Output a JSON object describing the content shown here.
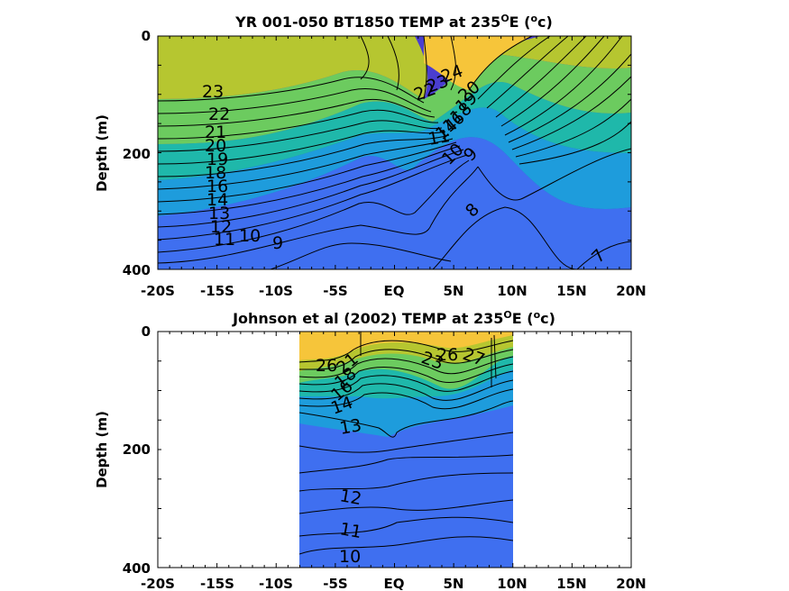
{
  "colors": {
    "warm": "#f6c53a",
    "yellow_green": "#b6c630",
    "green": "#6ccb5f",
    "teal": "#1fb8aa",
    "cyan": "#1e9cdc",
    "blue": "#3f6ff0",
    "deep_blue": "#4a3ed0",
    "contour": "#000000"
  },
  "chart_data": [
    {
      "type": "heatmap",
      "subtype": "filled-contour",
      "title": "YR 001-050 BT1850 TEMP at 235",
      "title_superscript": "O",
      "title_suffix": "E (",
      "unit_superscript": "o",
      "unit_suffix": "c)",
      "xlabel": "",
      "ylabel": "Depth (m)",
      "x_ticks": [
        "-20S",
        "-15S",
        "-10S",
        "-5S",
        "EQ",
        "5N",
        "10N",
        "15N",
        "20N"
      ],
      "x_range": [
        -20,
        20
      ],
      "y_ticks": [
        "0",
        "200",
        "400"
      ],
      "y_range": [
        0,
        400
      ],
      "y_reversed": true,
      "data_extent_x": [
        -20,
        20
      ],
      "colorscale": [
        "deep_blue",
        "blue",
        "cyan",
        "teal",
        "green",
        "yellow_green",
        "warm"
      ],
      "contour_labels": [
        {
          "text": "23",
          "x": -17.5,
          "depth": 95
        },
        {
          "text": "22",
          "x": -15.3,
          "depth": 130
        },
        {
          "text": "21",
          "x": -15.6,
          "depth": 160
        },
        {
          "text": "20",
          "x": -15.9,
          "depth": 185
        },
        {
          "text": "19",
          "x": -15.8,
          "depth": 205
        },
        {
          "text": "18",
          "x": -16.1,
          "depth": 225
        },
        {
          "text": "16",
          "x": -15.9,
          "depth": 255
        },
        {
          "text": "14",
          "x": -16.3,
          "depth": 275
        },
        {
          "text": "13",
          "x": -15.8,
          "depth": 295
        },
        {
          "text": "12",
          "x": -15.6,
          "depth": 320
        },
        {
          "text": "11",
          "x": -15.1,
          "depth": 350
        },
        {
          "text": "10",
          "x": -13.0,
          "depth": 345
        },
        {
          "text": "9",
          "x": -10.2,
          "depth": 362
        },
        {
          "text": "24",
          "x": 5.2,
          "depth": 80
        },
        {
          "text": "23",
          "x": 3.8,
          "depth": 92
        },
        {
          "text": "22",
          "x": 2.7,
          "depth": 100
        },
        {
          "text": "20",
          "x": 7.7,
          "depth": 107
        },
        {
          "text": "19",
          "x": 7.3,
          "depth": 118
        },
        {
          "text": "18",
          "x": 7.1,
          "depth": 128
        },
        {
          "text": "16",
          "x": 6.4,
          "depth": 145
        },
        {
          "text": "14",
          "x": 6.0,
          "depth": 158
        },
        {
          "text": "11",
          "x": 4.0,
          "depth": 170
        },
        {
          "text": "10",
          "x": 5.7,
          "depth": 205
        },
        {
          "text": "9",
          "x": 7.3,
          "depth": 200
        },
        {
          "text": "8",
          "x": 7.3,
          "depth": 300
        },
        {
          "text": "7",
          "x": 17.8,
          "depth": 375
        }
      ]
    },
    {
      "type": "heatmap",
      "subtype": "filled-contour",
      "title": "Johnson et al (2002) TEMP at 235",
      "title_superscript": "O",
      "title_suffix": "E (",
      "unit_superscript": "o",
      "unit_suffix": "c)",
      "xlabel": "",
      "ylabel": "Depth (m)",
      "x_ticks": [
        "-20S",
        "-15S",
        "-10S",
        "-5S",
        "EQ",
        "5N",
        "10N",
        "15N",
        "20N"
      ],
      "x_range": [
        -20,
        20
      ],
      "y_ticks": [
        "0",
        "200",
        "400"
      ],
      "y_range": [
        0,
        400
      ],
      "y_reversed": true,
      "data_extent_x": [
        -8,
        10
      ],
      "colorscale": [
        "deep_blue",
        "blue",
        "cyan",
        "teal",
        "green",
        "yellow_green",
        "warm"
      ],
      "contour_labels": [
        {
          "text": "26",
          "x": -5.6,
          "depth": 57
        },
        {
          "text": "21",
          "x": -4.2,
          "depth": 63
        },
        {
          "text": "18",
          "x": -4.6,
          "depth": 82
        },
        {
          "text": "16",
          "x": -4.8,
          "depth": 98
        },
        {
          "text": "14",
          "x": -5.0,
          "depth": 118
        },
        {
          "text": "13",
          "x": -3.3,
          "depth": 170
        },
        {
          "text": "12",
          "x": -3.6,
          "depth": 282
        },
        {
          "text": "11",
          "x": -3.6,
          "depth": 338
        },
        {
          "text": "10",
          "x": -3.6,
          "depth": 385
        },
        {
          "text": "23",
          "x": 3.3,
          "depth": 42
        },
        {
          "text": "26",
          "x": 4.8,
          "depth": 42
        },
        {
          "text": "27",
          "x": 7.0,
          "depth": 38
        }
      ]
    }
  ]
}
